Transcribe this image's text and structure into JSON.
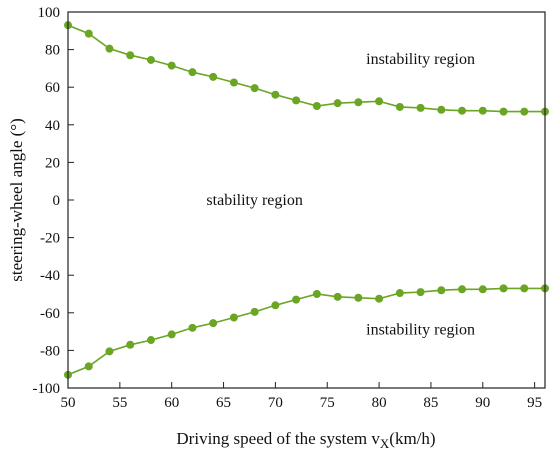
{
  "chart_data": {
    "type": "line",
    "title": "",
    "xlabel": "Driving speed of the system v",
    "xlabel_subscript": "X",
    "xlabel_unit": "(km/h)",
    "ylabel": "steering-wheel angle (°)",
    "xlim": [
      50,
      96
    ],
    "ylim": [
      -100,
      100
    ],
    "xticks": [
      50,
      55,
      60,
      65,
      70,
      75,
      80,
      85,
      90,
      95
    ],
    "yticks": [
      -100,
      -80,
      -60,
      -40,
      -20,
      0,
      20,
      40,
      60,
      80,
      100
    ],
    "grid": false,
    "color": "#6aa523",
    "x": [
      50,
      52,
      54,
      56,
      58,
      60,
      62,
      64,
      66,
      68,
      70,
      72,
      74,
      76,
      78,
      80,
      82,
      84,
      86,
      88,
      90,
      92,
      94,
      96
    ],
    "series": [
      {
        "values": [
          93,
          88.5,
          80.5,
          77,
          74.5,
          71.5,
          68,
          65.5,
          62.5,
          59.5,
          56,
          53,
          50,
          51.5,
          52,
          52.5,
          49.5,
          49,
          48,
          47.5,
          47.5,
          47,
          47,
          47
        ]
      },
      {
        "values": [
          -93,
          -88.5,
          -80.5,
          -77,
          -74.5,
          -71.5,
          -68,
          -65.5,
          -62.5,
          -59.5,
          -56,
          -53,
          -50,
          -51.5,
          -52,
          -52.5,
          -49.5,
          -49,
          -48,
          -47.5,
          -47.5,
          -47,
          -47,
          -47
        ]
      }
    ],
    "annotations": [
      {
        "text": "instability region",
        "x": 84,
        "y": 75
      },
      {
        "text": "stability region",
        "x": 68,
        "y": 0
      },
      {
        "text": "instability region",
        "x": 84,
        "y": -69
      }
    ]
  }
}
